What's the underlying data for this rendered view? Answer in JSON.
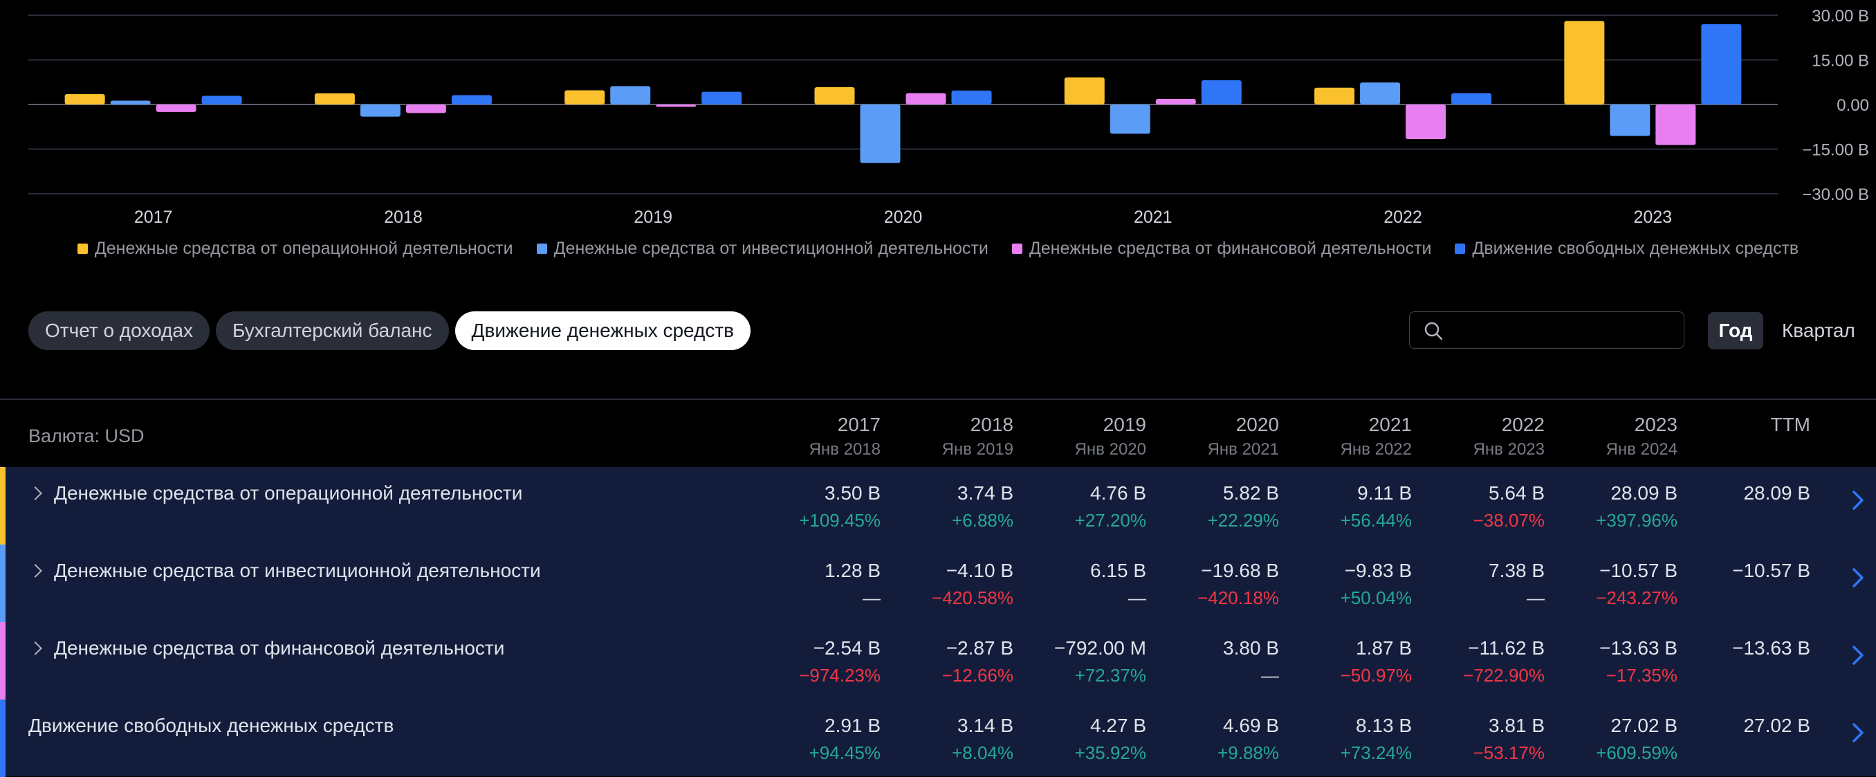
{
  "chart_data": {
    "type": "bar",
    "categories": [
      "2017",
      "2018",
      "2019",
      "2020",
      "2021",
      "2022",
      "2023"
    ],
    "series": [
      {
        "name": "Денежные средства от операционной деятельности",
        "color": "#fbc02d",
        "values": [
          3.5,
          3.74,
          4.76,
          5.82,
          9.11,
          5.64,
          28.09
        ]
      },
      {
        "name": "Денежные средства от инвестиционной деятельности",
        "color": "#5b9cf6",
        "values": [
          1.28,
          -4.1,
          6.15,
          -19.68,
          -9.83,
          7.38,
          -10.57
        ]
      },
      {
        "name": "Денежные средства от финансовой деятельности",
        "color": "#e77ff1",
        "values": [
          -2.54,
          -2.87,
          -0.792,
          3.8,
          1.87,
          -11.62,
          -13.63
        ]
      },
      {
        "name": "Движение свободных денежных средств",
        "color": "#2f75f6",
        "values": [
          2.91,
          3.14,
          4.27,
          4.69,
          8.13,
          3.81,
          27.02
        ]
      }
    ],
    "yticks": [
      30,
      15,
      0,
      -15,
      -30
    ],
    "ytick_labels": [
      "30.00 B",
      "15.00 B",
      "0.00",
      "−15.00 B",
      "−30.00 B"
    ],
    "ylim": [
      -30,
      30
    ],
    "grid": true,
    "legend": "bottom"
  },
  "tabs": [
    {
      "label": "Отчет о доходах",
      "active": false
    },
    {
      "label": "Бухгалтерский баланс",
      "active": false
    },
    {
      "label": "Движение денежных средств",
      "active": true
    }
  ],
  "search": {
    "placeholder": "",
    "icon": "search-icon"
  },
  "period": {
    "year": "Год",
    "quarter": "Квартал"
  },
  "table": {
    "currency_label": "Валюта: USD",
    "columns": [
      {
        "year": "2017",
        "sub": "Янв 2018"
      },
      {
        "year": "2018",
        "sub": "Янв 2019"
      },
      {
        "year": "2019",
        "sub": "Янв 2020"
      },
      {
        "year": "2020",
        "sub": "Янв 2021"
      },
      {
        "year": "2021",
        "sub": "Янв 2022"
      },
      {
        "year": "2022",
        "sub": "Янв 2023"
      },
      {
        "year": "2023",
        "sub": "Янв 2024"
      },
      {
        "year": "TTM",
        "sub": ""
      }
    ],
    "rows": [
      {
        "label": "Денежные средства от операционной деятельности",
        "expandable": true,
        "color": "#fbc02d",
        "values": [
          "3.50 B",
          "3.74 B",
          "4.76 B",
          "5.82 B",
          "9.11 B",
          "5.64 B",
          "28.09 B",
          "28.09 B"
        ],
        "changes": [
          "+109.45%",
          "+6.88%",
          "+27.20%",
          "+22.29%",
          "+56.44%",
          "−38.07%",
          "+397.96%",
          ""
        ]
      },
      {
        "label": "Денежные средства от инвестиционной деятельности",
        "expandable": true,
        "color": "#5b9cf6",
        "values": [
          "1.28 B",
          "−4.10 B",
          "6.15 B",
          "−19.68 B",
          "−9.83 B",
          "7.38 B",
          "−10.57 B",
          "−10.57 B"
        ],
        "changes": [
          "—",
          "−420.58%",
          "—",
          "−420.18%",
          "+50.04%",
          "—",
          "−243.27%",
          ""
        ]
      },
      {
        "label": "Денежные средства от финансовой деятельности",
        "expandable": true,
        "color": "#e77ff1",
        "values": [
          "−2.54 B",
          "−2.87 B",
          "−792.00 M",
          "3.80 B",
          "1.87 B",
          "−11.62 B",
          "−13.63 B",
          "−13.63 B"
        ],
        "changes": [
          "−974.23%",
          "−12.66%",
          "+72.37%",
          "—",
          "−50.97%",
          "−722.90%",
          "−17.35%",
          ""
        ]
      },
      {
        "label": "Движение свободных денежных средств",
        "expandable": false,
        "color": "#2f75f6",
        "values": [
          "2.91 B",
          "3.14 B",
          "4.27 B",
          "4.69 B",
          "8.13 B",
          "3.81 B",
          "27.02 B",
          "27.02 B"
        ],
        "changes": [
          "+94.45%",
          "+8.04%",
          "+35.92%",
          "+9.88%",
          "+73.24%",
          "−53.17%",
          "+609.59%",
          ""
        ]
      }
    ]
  }
}
